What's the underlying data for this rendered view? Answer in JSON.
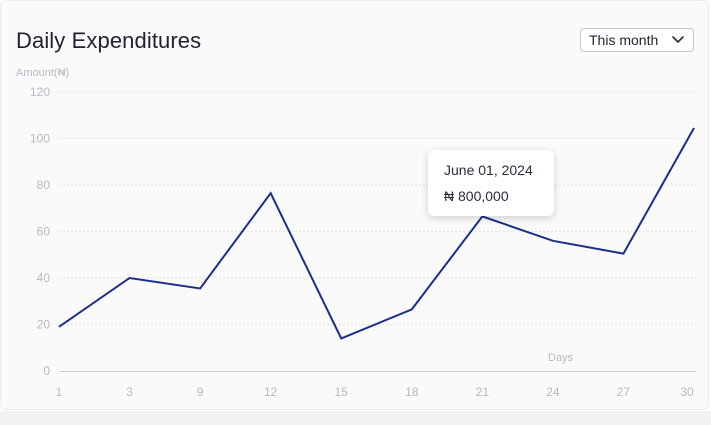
{
  "header": {
    "title": "Daily Expenditures",
    "range_select": {
      "value": "This month"
    }
  },
  "tooltip": {
    "date": "June 01, 2024",
    "value": "₦ 800,000"
  },
  "chart_data": {
    "type": "line",
    "title": "Daily Expenditures",
    "xlabel": "Days",
    "ylabel": "Amount(₦)",
    "x": [
      "1",
      "3",
      "9",
      "12",
      "15",
      "18",
      "21",
      "24",
      "27",
      "30"
    ],
    "series": [
      {
        "values": [
          19,
          40,
          35.5,
          76.5,
          14,
          26.5,
          66.5,
          56,
          50.5,
          104.5
        ]
      }
    ],
    "yticks": [
      0,
      20,
      40,
      60,
      80,
      100,
      120
    ],
    "ylim": [
      0,
      120
    ],
    "grid": true,
    "line_color": "#1c2e8c"
  }
}
